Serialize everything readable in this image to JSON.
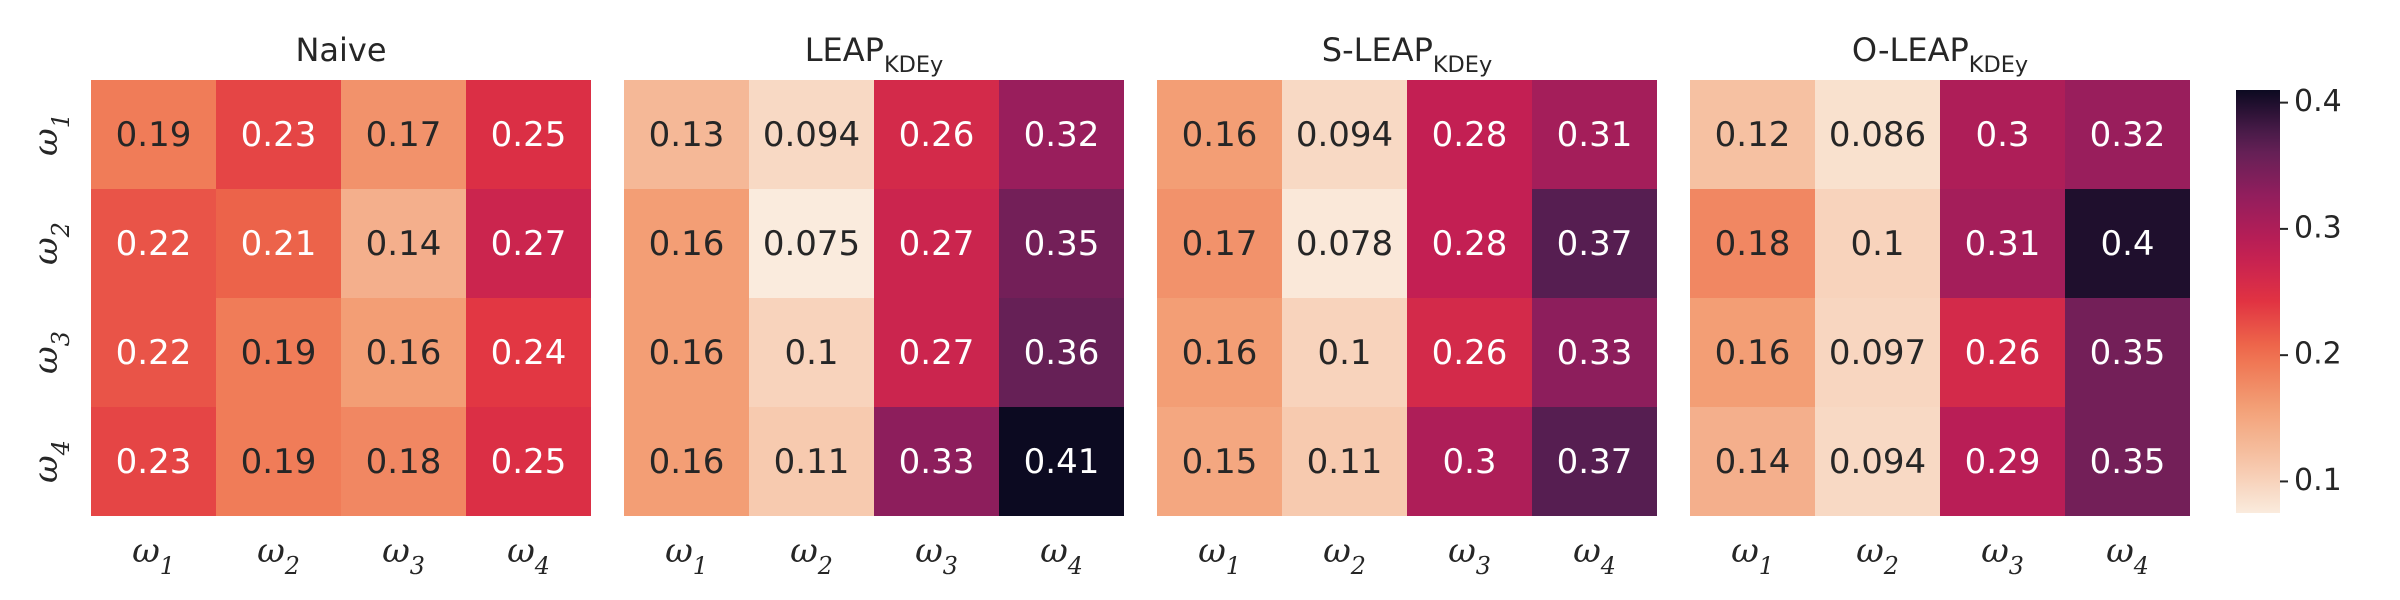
{
  "chart_data": {
    "type": "heatmap",
    "colormap": "rocket_r",
    "color_range": [
      0.075,
      0.41
    ],
    "row_labels": [
      {
        "base": "ω",
        "sub": "1"
      },
      {
        "base": "ω",
        "sub": "2"
      },
      {
        "base": "ω",
        "sub": "3"
      },
      {
        "base": "ω",
        "sub": "4"
      }
    ],
    "col_labels": [
      {
        "base": "ω",
        "sub": "1"
      },
      {
        "base": "ω",
        "sub": "2"
      },
      {
        "base": "ω",
        "sub": "3"
      },
      {
        "base": "ω",
        "sub": "4"
      }
    ],
    "panels": [
      {
        "title": {
          "base": "Naive",
          "sub": ""
        },
        "values": [
          [
            0.19,
            0.23,
            0.17,
            0.25
          ],
          [
            0.22,
            0.21,
            0.14,
            0.27
          ],
          [
            0.22,
            0.19,
            0.16,
            0.24
          ],
          [
            0.23,
            0.19,
            0.18,
            0.25
          ]
        ],
        "labels": [
          [
            "0.19",
            "0.23",
            "0.17",
            "0.25"
          ],
          [
            "0.22",
            "0.21",
            "0.14",
            "0.27"
          ],
          [
            "0.22",
            "0.19",
            "0.16",
            "0.24"
          ],
          [
            "0.23",
            "0.19",
            "0.18",
            "0.25"
          ]
        ]
      },
      {
        "title": {
          "base": "LEAP",
          "sub": "KDEy"
        },
        "values": [
          [
            0.13,
            0.094,
            0.26,
            0.32
          ],
          [
            0.16,
            0.075,
            0.27,
            0.35
          ],
          [
            0.16,
            0.1,
            0.27,
            0.36
          ],
          [
            0.16,
            0.11,
            0.33,
            0.41
          ]
        ],
        "labels": [
          [
            "0.13",
            "0.094",
            "0.26",
            "0.32"
          ],
          [
            "0.16",
            "0.075",
            "0.27",
            "0.35"
          ],
          [
            "0.16",
            "0.1",
            "0.27",
            "0.36"
          ],
          [
            "0.16",
            "0.11",
            "0.33",
            "0.41"
          ]
        ]
      },
      {
        "title": {
          "base": "S-LEAP",
          "sub": "KDEy"
        },
        "values": [
          [
            0.16,
            0.094,
            0.28,
            0.31
          ],
          [
            0.17,
            0.078,
            0.28,
            0.37
          ],
          [
            0.16,
            0.1,
            0.26,
            0.33
          ],
          [
            0.15,
            0.11,
            0.3,
            0.37
          ]
        ],
        "labels": [
          [
            "0.16",
            "0.094",
            "0.28",
            "0.31"
          ],
          [
            "0.17",
            "0.078",
            "0.28",
            "0.37"
          ],
          [
            "0.16",
            "0.1",
            "0.26",
            "0.33"
          ],
          [
            "0.15",
            "0.11",
            "0.3",
            "0.37"
          ]
        ]
      },
      {
        "title": {
          "base": "O-LEAP",
          "sub": "KDEy"
        },
        "values": [
          [
            0.12,
            0.086,
            0.3,
            0.32
          ],
          [
            0.18,
            0.1,
            0.31,
            0.4
          ],
          [
            0.16,
            0.097,
            0.26,
            0.35
          ],
          [
            0.14,
            0.094,
            0.29,
            0.35
          ]
        ],
        "labels": [
          [
            "0.12",
            "0.086",
            "0.3",
            "0.32"
          ],
          [
            "0.18",
            "0.1",
            "0.31",
            "0.4"
          ],
          [
            "0.16",
            "0.097",
            "0.26",
            "0.35"
          ],
          [
            "0.14",
            "0.094",
            "0.29",
            "0.35"
          ]
        ]
      }
    ],
    "colorbar": {
      "ticks": [
        0.1,
        0.2,
        0.3,
        0.4
      ],
      "tick_labels": [
        "0.1",
        "0.2",
        "0.3",
        "0.4"
      ]
    },
    "grid": false,
    "legend": "colorbar-right"
  }
}
